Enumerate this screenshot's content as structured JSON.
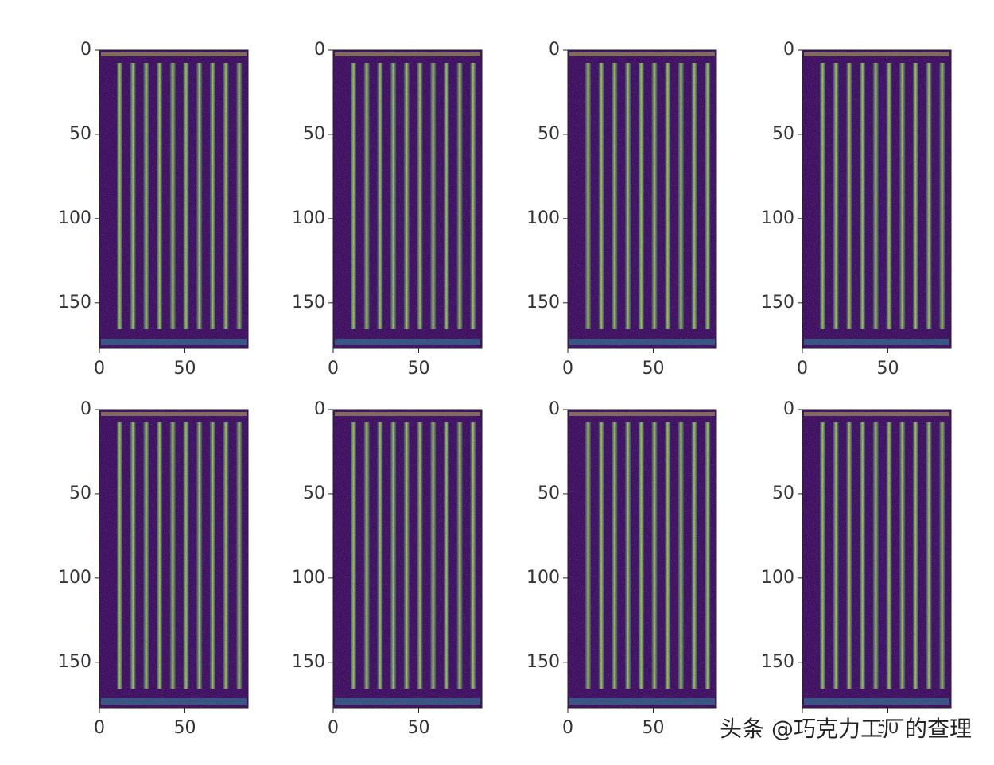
{
  "chart_data": [
    {
      "type": "image",
      "xlim": [
        0,
        87
      ],
      "ylim": [
        177,
        0
      ],
      "xticks": [
        0,
        50
      ],
      "yticks": [
        0,
        50,
        100,
        150
      ]
    },
    {
      "type": "image",
      "xlim": [
        0,
        87
      ],
      "ylim": [
        177,
        0
      ],
      "xticks": [
        0,
        50
      ],
      "yticks": [
        0,
        50,
        100,
        150
      ]
    },
    {
      "type": "image",
      "xlim": [
        0,
        87
      ],
      "ylim": [
        177,
        0
      ],
      "xticks": [
        0,
        50
      ],
      "yticks": [
        0,
        50,
        100,
        150
      ]
    },
    {
      "type": "image",
      "xlim": [
        0,
        87
      ],
      "ylim": [
        177,
        0
      ],
      "xticks": [
        0,
        50
      ],
      "yticks": [
        0,
        50,
        100,
        150
      ]
    },
    {
      "type": "image",
      "xlim": [
        0,
        87
      ],
      "ylim": [
        177,
        0
      ],
      "xticks": [
        0,
        50
      ],
      "yticks": [
        0,
        50,
        100,
        150
      ]
    },
    {
      "type": "image",
      "xlim": [
        0,
        87
      ],
      "ylim": [
        177,
        0
      ],
      "xticks": [
        0,
        50
      ],
      "yticks": [
        0,
        50,
        100,
        150
      ]
    },
    {
      "type": "image",
      "xlim": [
        0,
        87
      ],
      "ylim": [
        177,
        0
      ],
      "xticks": [
        0,
        50
      ],
      "yticks": [
        0,
        50,
        100,
        150
      ]
    },
    {
      "type": "image",
      "xlim": [
        0,
        87
      ],
      "ylim": [
        177,
        0
      ],
      "xticks": [
        0,
        50
      ],
      "yticks": [
        0,
        50,
        100,
        150
      ]
    }
  ],
  "watermark": "头条 @巧克力工厂的查理"
}
